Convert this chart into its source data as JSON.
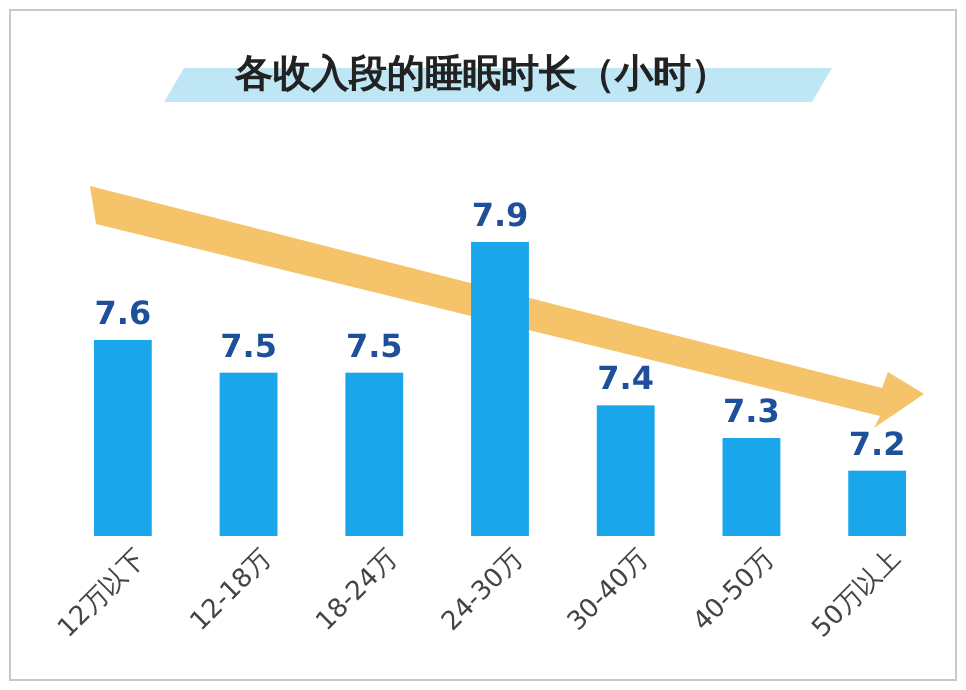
{
  "chart_data": {
    "type": "bar",
    "title": "各收入段的睡眠时长（小时）",
    "categories": [
      "12万以下",
      "12-18万",
      "18-24万",
      "24-30万",
      "30-40万",
      "40-50万",
      "50万以上"
    ],
    "values": [
      7.6,
      7.5,
      7.5,
      7.9,
      7.4,
      7.3,
      7.2
    ],
    "color": "#1aa6ea",
    "ylim": [
      7.0,
      7.9
    ],
    "tick_labels": "x",
    "data_labels": true
  }
}
